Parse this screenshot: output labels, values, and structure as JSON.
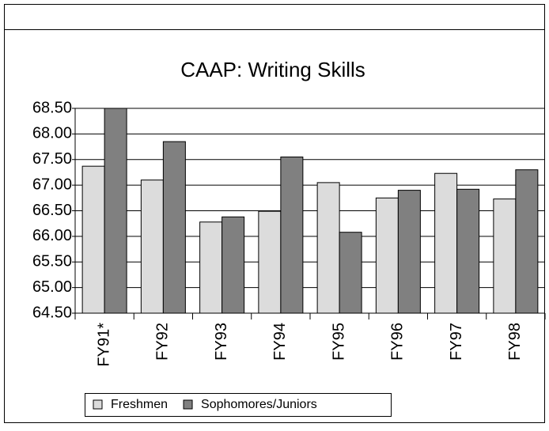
{
  "chart_data": {
    "type": "bar",
    "title": "CAAP: Writing Skills",
    "categories": [
      "FY91*",
      "FY92",
      "FY93",
      "FY94",
      "FY95",
      "FY96",
      "FY97",
      "FY98"
    ],
    "series": [
      {
        "name": "Freshmen",
        "color": "#dcdcdc",
        "values": [
          67.37,
          67.1,
          66.28,
          66.49,
          67.05,
          66.75,
          67.23,
          66.73
        ]
      },
      {
        "name": "Sophomores/Juniors",
        "color": "#808080",
        "values": [
          68.5,
          67.85,
          66.38,
          67.55,
          66.08,
          66.9,
          66.92,
          67.3
        ]
      }
    ],
    "ylim": [
      64.5,
      68.5
    ],
    "yticks": [
      {
        "value": 64.5,
        "label": "64.50"
      },
      {
        "value": 65.0,
        "label": "65.00"
      },
      {
        "value": 65.5,
        "label": "65.50"
      },
      {
        "value": 66.0,
        "label": "66.00"
      },
      {
        "value": 66.5,
        "label": "66.50"
      },
      {
        "value": 67.0,
        "label": "67.00"
      },
      {
        "value": 67.5,
        "label": "67.50"
      },
      {
        "value": 68.0,
        "label": "68.00"
      },
      {
        "value": 68.5,
        "label": "68.50"
      }
    ],
    "grid": true
  }
}
